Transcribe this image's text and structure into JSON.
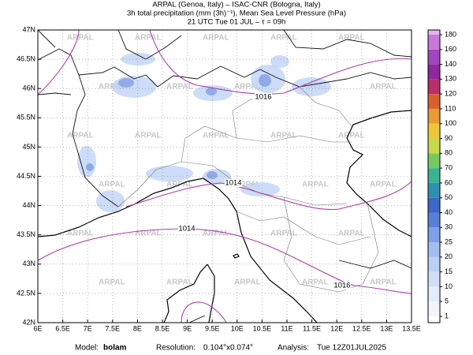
{
  "header": {
    "line1": "ARPAL (Genoa, Italy)  –  ISAC-CNR (Bologna, Italy)",
    "line2": "3h total precipitation (mm (3h)⁻¹), Mean Sea Level Pressure (hPa)",
    "line3": "21 UTC Tue 01 JUL  –  τ = 09h"
  },
  "map": {
    "xlim": [
      6,
      13.5
    ],
    "ylim": [
      42,
      47
    ],
    "xticks": [
      {
        "value": 6,
        "label": "6E"
      },
      {
        "value": 6.5,
        "label": "6.5E"
      },
      {
        "value": 7,
        "label": "7E"
      },
      {
        "value": 7.5,
        "label": "7.5E"
      },
      {
        "value": 8,
        "label": "8E"
      },
      {
        "value": 8.5,
        "label": "8.5E"
      },
      {
        "value": 9,
        "label": "9E"
      },
      {
        "value": 9.5,
        "label": "9.5E"
      },
      {
        "value": 10,
        "label": "10E"
      },
      {
        "value": 10.5,
        "label": "10.5E"
      },
      {
        "value": 11,
        "label": "11E"
      },
      {
        "value": 11.5,
        "label": "11.5E"
      },
      {
        "value": 12,
        "label": "12E"
      },
      {
        "value": 12.5,
        "label": "12.5E"
      },
      {
        "value": 13,
        "label": "13E"
      },
      {
        "value": 13.5,
        "label": "13.5E"
      }
    ],
    "yticks": [
      {
        "value": 42,
        "label": "42N"
      },
      {
        "value": 42.5,
        "label": "42.5N"
      },
      {
        "value": 43,
        "label": "43N"
      },
      {
        "value": 43.5,
        "label": "43.5N"
      },
      {
        "value": 44,
        "label": "44N"
      },
      {
        "value": 44.5,
        "label": "44.5N"
      },
      {
        "value": 45,
        "label": "45N"
      },
      {
        "value": 45.5,
        "label": "45.5N"
      },
      {
        "value": 46,
        "label": "46N"
      },
      {
        "value": 46.5,
        "label": "46.5N"
      },
      {
        "value": 47,
        "label": "47N"
      }
    ],
    "grid": true,
    "watermark": "ARPAL",
    "isobars": [
      1016,
      1014,
      1014,
      1016
    ]
  },
  "colorbar": {
    "levels": [
      1,
      5,
      10,
      15,
      20,
      25,
      30,
      40,
      50,
      60,
      70,
      80,
      90,
      100,
      110,
      120,
      130,
      140,
      160,
      180
    ],
    "colors": [
      "#f4f4fc",
      "#e4ebfa",
      "#d2def7",
      "#bccff4",
      "#a3bdef",
      "#7f9fe6",
      "#5b7fd8",
      "#3f67c8",
      "#2f8fb0",
      "#3bb392",
      "#78c860",
      "#c8d848",
      "#ecc838",
      "#e89a34",
      "#d8602e",
      "#b8306a",
      "#8c2a9c",
      "#a046be",
      "#c878d8",
      "#e4b4ec"
    ]
  },
  "footer": {
    "model_label": "Model:",
    "model": "bolam",
    "resolution_label": "Resolution:",
    "resolution": "0.104°x0.074°",
    "analysis_label": "Analysis:",
    "analysis": "Tue 12Z01JUL2025"
  }
}
